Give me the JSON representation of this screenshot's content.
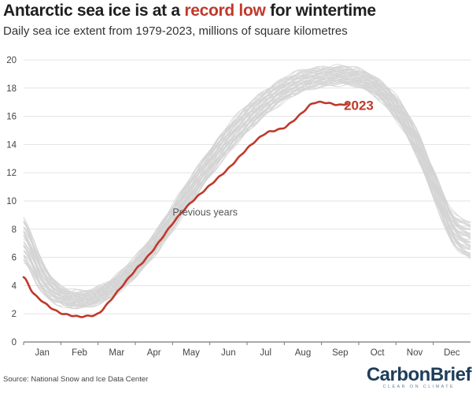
{
  "header": {
    "title_pre": "Antarctic sea ice is at a ",
    "title_highlight": "record low",
    "title_post": " for wintertime",
    "subtitle": "Daily sea ice extent from 1979-2023, millions of square kilometres"
  },
  "footer": {
    "source": "Source: National Snow and Ice Data Center",
    "logo_brand": "CarbonBrief",
    "logo_tagline": "CLEAR ON CLIMATE"
  },
  "colors": {
    "highlight": "#c0392b",
    "previous_years": "#d4d4d4",
    "axis_text": "#444444",
    "gridline": "#e3e3e3"
  },
  "chart_data": {
    "type": "line",
    "title": "Antarctic sea ice is at a record low for wintertime",
    "subtitle": "Daily sea ice extent from 1979-2023, millions of square kilometres",
    "xlabel": "",
    "ylabel": "",
    "x_unit": "month",
    "x_ticks": [
      "Jan",
      "Feb",
      "Mar",
      "Apr",
      "May",
      "Jun",
      "Jul",
      "Aug",
      "Sep",
      "Oct",
      "Nov",
      "Dec"
    ],
    "xlim": [
      0.0,
      12.0
    ],
    "ylim": [
      0,
      20
    ],
    "y_ticks": [
      0,
      2,
      4,
      6,
      8,
      10,
      12,
      14,
      16,
      18,
      20
    ],
    "grid": true,
    "annotations": [
      {
        "text": "Previous years",
        "x": 4.0,
        "y": 9.2
      },
      {
        "text": "2023",
        "x": 8.6,
        "y": 16.9
      }
    ],
    "previous_years_band": {
      "name": "Previous years",
      "x": [
        0.0,
        0.5,
        1.0,
        1.5,
        2.0,
        2.5,
        3.0,
        3.5,
        4.0,
        4.5,
        5.0,
        5.5,
        6.0,
        6.5,
        7.0,
        7.5,
        8.0,
        8.5,
        9.0,
        9.5,
        10.0,
        10.5,
        11.0,
        11.5,
        12.0
      ],
      "low": [
        5.4,
        3.3,
        2.6,
        2.4,
        2.7,
        3.5,
        4.6,
        6.0,
        7.8,
        9.7,
        11.5,
        13.2,
        14.6,
        15.9,
        16.9,
        17.6,
        18.0,
        18.1,
        17.9,
        17.2,
        15.6,
        13.3,
        10.2,
        7.0,
        5.6
      ],
      "mid": [
        7.2,
        4.6,
        3.3,
        3.0,
        3.3,
        4.1,
        5.3,
        6.9,
        8.8,
        10.8,
        12.7,
        14.4,
        15.8,
        17.0,
        17.9,
        18.5,
        18.8,
        18.9,
        18.7,
        18.0,
        16.6,
        14.4,
        11.3,
        8.2,
        7.2
      ],
      "high": [
        9.2,
        6.0,
        4.2,
        3.8,
        4.1,
        5.0,
        6.3,
        7.9,
        9.9,
        11.9,
        13.8,
        15.5,
        16.9,
        18.0,
        18.8,
        19.4,
        19.6,
        19.6,
        19.4,
        18.8,
        17.5,
        15.5,
        12.6,
        9.6,
        8.8
      ]
    },
    "series": [
      {
        "name": "2023",
        "x": [
          0.0,
          0.25,
          0.5,
          0.75,
          1.0,
          1.25,
          1.5,
          1.75,
          2.0,
          2.25,
          2.5,
          2.75,
          3.0,
          3.25,
          3.5,
          3.75,
          4.0,
          4.25,
          4.5,
          4.75,
          5.0,
          5.25,
          5.5,
          5.75,
          6.0,
          6.25,
          6.5,
          6.75,
          7.0,
          7.25,
          7.5,
          7.75,
          8.0,
          8.25,
          8.5,
          8.7
        ],
        "y": [
          4.6,
          3.5,
          2.9,
          2.4,
          2.05,
          1.9,
          1.8,
          1.85,
          2.0,
          2.7,
          3.5,
          4.3,
          5.1,
          5.8,
          6.6,
          7.5,
          8.4,
          9.2,
          9.9,
          10.5,
          11.1,
          11.7,
          12.3,
          13.0,
          13.7,
          14.3,
          14.8,
          15.0,
          15.2,
          15.7,
          16.3,
          16.9,
          17.0,
          16.9,
          16.8,
          16.9
        ]
      }
    ]
  }
}
